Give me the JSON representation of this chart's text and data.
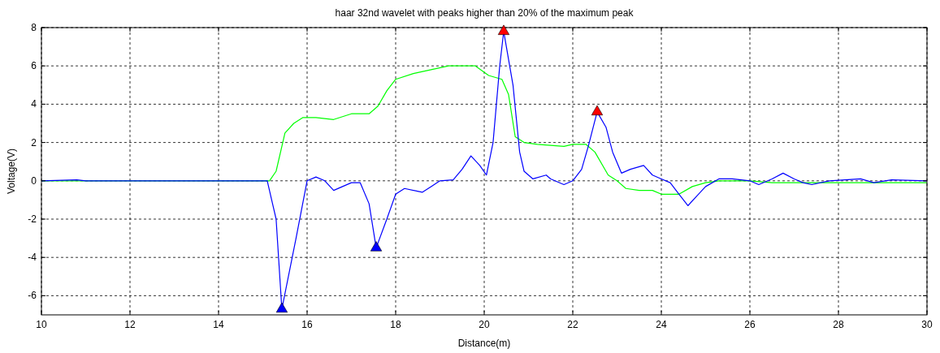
{
  "chart_data": {
    "type": "line",
    "title": "haar 32nd wavelet with peaks higher than 20% of the maximum peak",
    "xlabel": "Distance(m)",
    "ylabel": "Voltage(V)",
    "xlim": [
      10,
      30
    ],
    "xticks": [
      10,
      12,
      14,
      16,
      18,
      20,
      22,
      24,
      26,
      28,
      30
    ],
    "ylim": [
      -7,
      8
    ],
    "yticks": [
      -6,
      -4,
      -2,
      0,
      2,
      4,
      6,
      8
    ],
    "grid": true,
    "series": [
      {
        "color": "#00ff00",
        "x": [
          10,
          15.15,
          15.3,
          15.5,
          15.7,
          15.9,
          16.2,
          16.6,
          17,
          17.4,
          17.6,
          17.8,
          18,
          18.4,
          18.8,
          19.2,
          19.8,
          20.1,
          20.4,
          20.55,
          20.7,
          20.9,
          21.2,
          21.8,
          22,
          22.3,
          22.5,
          22.8,
          23,
          23.2,
          23.5,
          23.8,
          24,
          24.4,
          24.7,
          25,
          25.3,
          26,
          26.5,
          28,
          30
        ],
        "values": [
          0,
          0,
          0.5,
          2.5,
          3,
          3.3,
          3.3,
          3.2,
          3.5,
          3.5,
          3.9,
          4.7,
          5.3,
          5.6,
          5.8,
          6,
          6,
          5.5,
          5.3,
          4.5,
          2.3,
          2,
          1.9,
          1.8,
          1.9,
          1.9,
          1.5,
          0.3,
          0,
          -0.4,
          -0.5,
          -0.5,
          -0.7,
          -0.7,
          -0.3,
          -0.1,
          0,
          0,
          -0.1,
          -0.1,
          -0.1
        ]
      },
      {
        "color": "#0000ff",
        "x": [
          10,
          10.8,
          11,
          15.1,
          15.3,
          15.43,
          15.75,
          16,
          16.2,
          16.4,
          16.6,
          16.8,
          17,
          17.2,
          17.4,
          17.56,
          17.8,
          18,
          18.2,
          18.6,
          18.8,
          19,
          19.3,
          19.5,
          19.7,
          19.9,
          20.05,
          20.2,
          20.35,
          20.44,
          20.65,
          20.8,
          20.9,
          21.1,
          21.4,
          21.5,
          21.8,
          22,
          22.2,
          22.35,
          22.55,
          22.75,
          22.9,
          23.1,
          23.3,
          23.6,
          23.8,
          24,
          24.2,
          24.4,
          24.6,
          24.8,
          25,
          25.3,
          25.6,
          26,
          26.2,
          26.5,
          26.75,
          27,
          27.2,
          27.4,
          27.8,
          28.5,
          28.8,
          29.2,
          30
        ],
        "values": [
          0,
          0.05,
          0,
          0,
          -2,
          -6.7,
          -3,
          0,
          0.2,
          0,
          -0.5,
          -0.3,
          -0.1,
          -0.1,
          -1.2,
          -3.5,
          -2,
          -0.7,
          -0.4,
          -0.6,
          -0.3,
          0,
          0.05,
          0.6,
          1.3,
          0.8,
          0.3,
          2,
          6,
          7.8,
          5,
          1.5,
          0.5,
          0.1,
          0.3,
          0.1,
          -0.2,
          0,
          0.6,
          1.8,
          3.6,
          2.8,
          1.5,
          0.4,
          0.6,
          0.8,
          0.3,
          0.1,
          -0.1,
          -0.7,
          -1.3,
          -0.8,
          -0.3,
          0.1,
          0.1,
          0,
          -0.2,
          0.1,
          0.4,
          0.1,
          -0.1,
          -0.2,
          0,
          0.1,
          -0.1,
          0.05,
          0
        ]
      },
      {
        "type": "scatter",
        "marker": "triangle",
        "color": "#ff0000",
        "x": [
          20.44,
          22.55
        ],
        "values": [
          7.8,
          3.6
        ]
      },
      {
        "type": "scatter",
        "marker": "triangle",
        "color": "#0000ff",
        "x": [
          15.43,
          17.56
        ],
        "values": [
          -6.7,
          -3.5
        ]
      }
    ]
  }
}
